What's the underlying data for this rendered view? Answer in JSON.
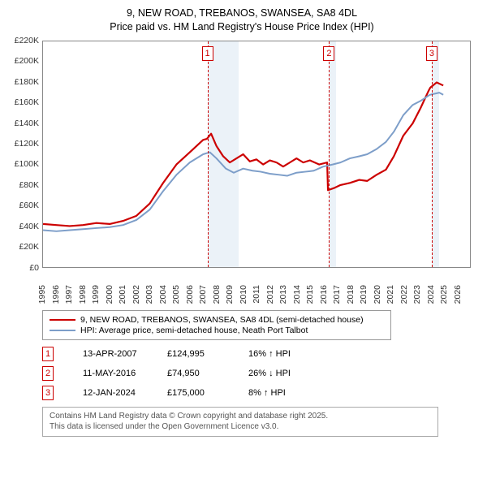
{
  "title": {
    "line1": "9, NEW ROAD, TREBANOS, SWANSEA, SA8 4DL",
    "line2": "Price paid vs. HM Land Registry's House Price Index (HPI)"
  },
  "chart": {
    "type": "line",
    "background_color": "#ffffff",
    "plot_border_color": "#888888",
    "band_color": "#dbe7f3",
    "xlim": [
      1995,
      2027
    ],
    "ylim": [
      0,
      220000
    ],
    "y_ticks": [
      0,
      20000,
      40000,
      60000,
      80000,
      100000,
      120000,
      140000,
      160000,
      180000,
      200000,
      220000
    ],
    "y_tick_labels": [
      "£0",
      "£20K",
      "£40K",
      "£60K",
      "£80K",
      "£100K",
      "£120K",
      "£140K",
      "£160K",
      "£180K",
      "£200K",
      "£220K"
    ],
    "x_ticks": [
      1995,
      1996,
      1997,
      1998,
      1999,
      2000,
      2001,
      2002,
      2003,
      2004,
      2005,
      2006,
      2007,
      2008,
      2009,
      2010,
      2011,
      2012,
      2013,
      2014,
      2015,
      2016,
      2017,
      2018,
      2019,
      2020,
      2021,
      2022,
      2023,
      2024,
      2025,
      2026
    ],
    "tick_fontsize": 10.5,
    "shaded_bands": [
      {
        "start": 2007.28,
        "end": 2009.6
      },
      {
        "start": 2016.36,
        "end": 2016.9
      },
      {
        "start": 2024.03,
        "end": 2024.6
      }
    ],
    "sale_markers": [
      {
        "n": 1,
        "x": 2007.28,
        "color": "#cc0000"
      },
      {
        "n": 2,
        "x": 2016.36,
        "color": "#cc0000"
      },
      {
        "n": 3,
        "x": 2024.03,
        "color": "#cc0000"
      }
    ],
    "series": [
      {
        "id": "price_paid",
        "color": "#cc0000",
        "width": 2.2,
        "points": [
          [
            1995,
            42000
          ],
          [
            1996,
            41000
          ],
          [
            1997,
            40000
          ],
          [
            1998,
            41000
          ],
          [
            1999,
            43000
          ],
          [
            2000,
            42000
          ],
          [
            2001,
            45000
          ],
          [
            2002,
            50000
          ],
          [
            2003,
            62000
          ],
          [
            2004,
            82000
          ],
          [
            2005,
            100000
          ],
          [
            2006,
            112000
          ],
          [
            2007,
            124000
          ],
          [
            2007.28,
            124995
          ],
          [
            2007.6,
            130000
          ],
          [
            2008,
            118000
          ],
          [
            2008.5,
            108000
          ],
          [
            2009,
            102000
          ],
          [
            2009.5,
            106000
          ],
          [
            2010,
            110000
          ],
          [
            2010.5,
            103000
          ],
          [
            2011,
            105000
          ],
          [
            2011.5,
            100000
          ],
          [
            2012,
            104000
          ],
          [
            2012.5,
            102000
          ],
          [
            2013,
            98000
          ],
          [
            2013.5,
            102000
          ],
          [
            2014,
            106000
          ],
          [
            2014.5,
            102000
          ],
          [
            2015,
            104000
          ],
          [
            2015.7,
            100000
          ],
          [
            2016.3,
            102000
          ],
          [
            2016.36,
            74950
          ],
          [
            2016.8,
            77000
          ],
          [
            2017.3,
            80000
          ],
          [
            2018,
            82000
          ],
          [
            2018.7,
            85000
          ],
          [
            2019.3,
            84000
          ],
          [
            2020,
            90000
          ],
          [
            2020.7,
            95000
          ],
          [
            2021.3,
            108000
          ],
          [
            2022,
            128000
          ],
          [
            2022.7,
            140000
          ],
          [
            2023.3,
            155000
          ],
          [
            2023.9,
            172000
          ],
          [
            2024.03,
            175000
          ],
          [
            2024.5,
            180000
          ],
          [
            2025,
            177000
          ]
        ]
      },
      {
        "id": "hpi",
        "color": "#7d9ec9",
        "width": 2,
        "points": [
          [
            1995,
            36000
          ],
          [
            1996,
            35000
          ],
          [
            1997,
            36000
          ],
          [
            1998,
            37000
          ],
          [
            1999,
            38000
          ],
          [
            2000,
            39000
          ],
          [
            2001,
            41000
          ],
          [
            2002,
            46000
          ],
          [
            2003,
            56000
          ],
          [
            2004,
            74000
          ],
          [
            2005,
            90000
          ],
          [
            2006,
            102000
          ],
          [
            2007,
            110000
          ],
          [
            2007.5,
            112000
          ],
          [
            2008,
            106000
          ],
          [
            2008.7,
            96000
          ],
          [
            2009.3,
            92000
          ],
          [
            2010,
            96000
          ],
          [
            2010.7,
            94000
          ],
          [
            2011.3,
            93000
          ],
          [
            2012,
            91000
          ],
          [
            2012.7,
            90000
          ],
          [
            2013.3,
            89000
          ],
          [
            2014,
            92000
          ],
          [
            2014.7,
            93000
          ],
          [
            2015.3,
            94000
          ],
          [
            2016,
            98000
          ],
          [
            2016.7,
            100000
          ],
          [
            2017.3,
            102000
          ],
          [
            2018,
            106000
          ],
          [
            2018.7,
            108000
          ],
          [
            2019.3,
            110000
          ],
          [
            2020,
            115000
          ],
          [
            2020.7,
            122000
          ],
          [
            2021.3,
            132000
          ],
          [
            2022,
            148000
          ],
          [
            2022.7,
            158000
          ],
          [
            2023.3,
            162000
          ],
          [
            2024,
            168000
          ],
          [
            2024.7,
            170000
          ],
          [
            2025,
            168000
          ]
        ]
      }
    ]
  },
  "legend": {
    "items": [
      {
        "color": "#cc0000",
        "label": "9, NEW ROAD, TREBANOS, SWANSEA, SA8 4DL (semi-detached house)"
      },
      {
        "color": "#7d9ec9",
        "label": "HPI: Average price, semi-detached house, Neath Port Talbot"
      }
    ]
  },
  "sales_table": {
    "rows": [
      {
        "n": 1,
        "color": "#cc0000",
        "date": "13-APR-2007",
        "price": "£124,995",
        "hpi": "16% ↑ HPI"
      },
      {
        "n": 2,
        "color": "#cc0000",
        "date": "11-MAY-2016",
        "price": "£74,950",
        "hpi": "26% ↓ HPI"
      },
      {
        "n": 3,
        "color": "#cc0000",
        "date": "12-JAN-2024",
        "price": "£175,000",
        "hpi": "8% ↑ HPI"
      }
    ]
  },
  "attribution": {
    "line1": "Contains HM Land Registry data © Crown copyright and database right 2025.",
    "line2": "This data is licensed under the Open Government Licence v3.0."
  }
}
